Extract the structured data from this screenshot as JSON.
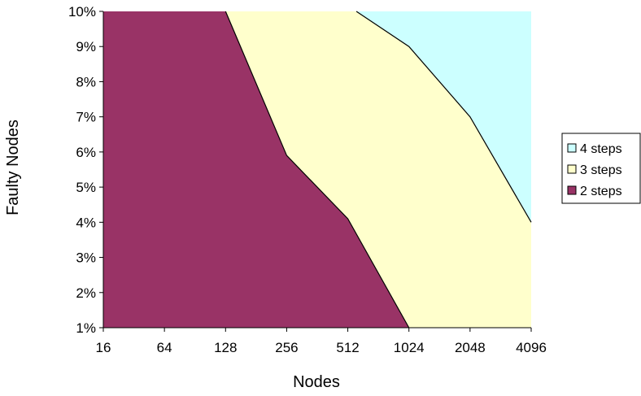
{
  "chart_data": {
    "type": "area",
    "title": "",
    "xlabel": "Nodes",
    "ylabel": "Faulty Nodes",
    "x": [
      "16",
      "64",
      "128",
      "256",
      "512",
      "1024",
      "2048",
      "4096"
    ],
    "ylim": [
      1,
      10
    ],
    "yticks": [
      "1%",
      "2%",
      "3%",
      "4%",
      "5%",
      "6%",
      "7%",
      "8%",
      "9%",
      "10%"
    ],
    "grid": false,
    "legend_position": "right",
    "series": [
      {
        "name": "2 steps",
        "color": "#993366",
        "boundary": [
          {
            "x": 0,
            "y": 10
          },
          {
            "x": 2,
            "y": 10
          },
          {
            "x": 3,
            "y": 5.9
          },
          {
            "x": 4,
            "y": 4.1
          },
          {
            "x": 5,
            "y": 1
          }
        ]
      },
      {
        "name": "3 steps",
        "color": "#FFFFCC",
        "boundary": [
          {
            "x": 4.14,
            "y": 10
          },
          {
            "x": 5,
            "y": 9
          },
          {
            "x": 6,
            "y": 7
          },
          {
            "x": 7,
            "y": 4
          }
        ]
      },
      {
        "name": "4 steps",
        "color": "#CCFFFF"
      }
    ],
    "legend": [
      "4 steps",
      "3 steps",
      "2 steps"
    ]
  }
}
